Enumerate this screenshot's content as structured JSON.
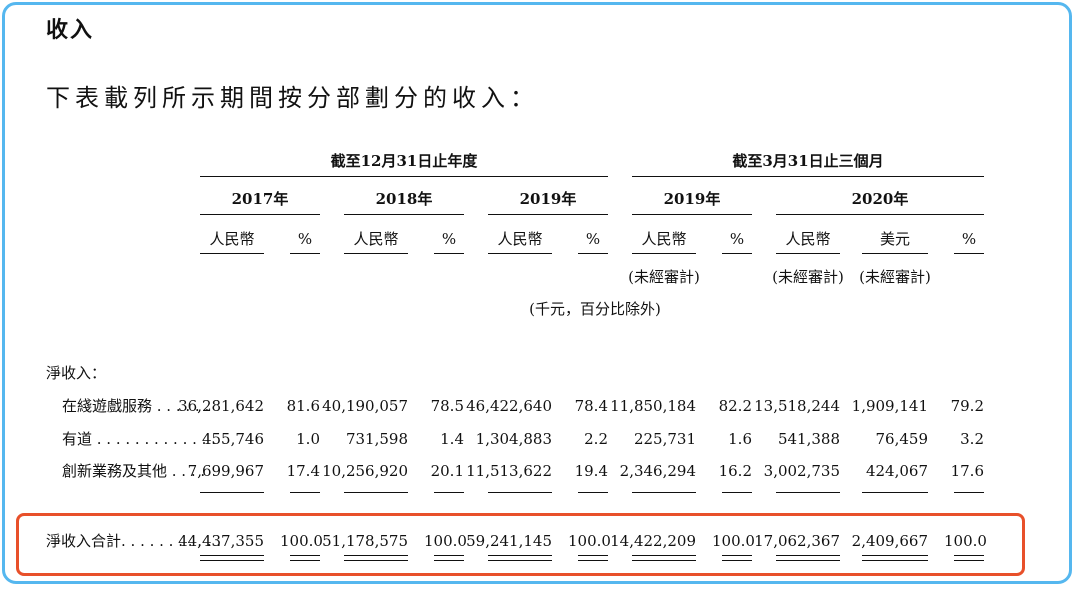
{
  "title": "收入",
  "intro": "下表載列所示期間按分部劃分的收入：",
  "period_headers": {
    "year_end": "截至12月31日止年度",
    "three_months": "截至3月31日止三個月"
  },
  "years": [
    "2017年",
    "2018年",
    "2019年",
    "2019年",
    "2020年"
  ],
  "currency": {
    "rmb": "人民幣",
    "usd": "美元",
    "pct": "%"
  },
  "unaudited": "(未經審計)",
  "unit_note": "(千元，百分比除外)",
  "section_label": "淨收入：",
  "rows": [
    {
      "label": "在綫遊戲服務 . . . . . .",
      "values": [
        "36,281,642",
        "81.6",
        "40,190,057",
        "78.5",
        "46,422,640",
        "78.4",
        "11,850,184",
        "82.2",
        "13,518,244",
        "1,909,141",
        "79.2"
      ]
    },
    {
      "label": "有道 . . . . . . . . . . . . .",
      "values": [
        "455,746",
        "1.0",
        "731,598",
        "1.4",
        "1,304,883",
        "2.2",
        "225,731",
        "1.6",
        "541,388",
        "76,459",
        "3.2"
      ]
    },
    {
      "label": "創新業務及其他 . . . .",
      "values": [
        "7,699,967",
        "17.4",
        "10,256,920",
        "20.1",
        "11,513,622",
        "19.4",
        "2,346,294",
        "16.2",
        "3,002,735",
        "424,067",
        "17.6"
      ]
    }
  ],
  "total": {
    "label": "淨收入合計. . . . . . . . . . .",
    "values": [
      "44,437,355",
      "100.0",
      "51,178,575",
      "100.0",
      "59,241,145",
      "100.0",
      "14,422,209",
      "100.0",
      "17,062,367",
      "2,409,667",
      "100.0"
    ]
  },
  "colors": {
    "frame": "#55b7ef",
    "highlight": "#e8502a"
  }
}
